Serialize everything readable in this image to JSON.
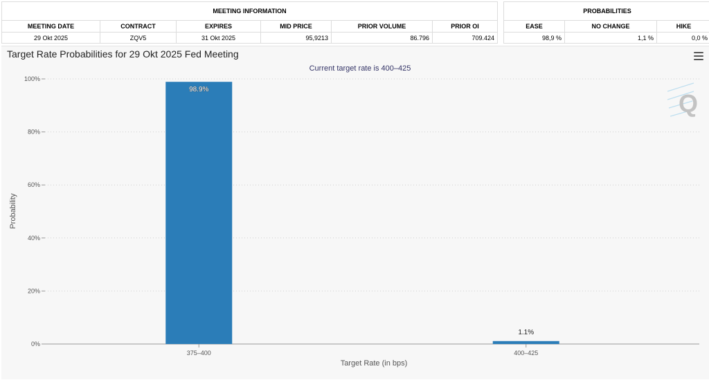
{
  "meeting_info": {
    "group_label": "MEETING INFORMATION",
    "headers": [
      "MEETING DATE",
      "CONTRACT",
      "EXPIRES",
      "MID PRICE",
      "PRIOR VOLUME",
      "PRIOR OI"
    ],
    "row": [
      "29 Okt 2025",
      "ZQV5",
      "31 Okt 2025",
      "95,9213",
      "86.796",
      "709.424"
    ]
  },
  "probabilities": {
    "group_label": "PROBABILITIES",
    "headers": [
      "EASE",
      "NO CHANGE",
      "HIKE"
    ],
    "row": [
      "98,9 %",
      "1,1 %",
      "0,0 %"
    ]
  },
  "watermark_text": "Q",
  "chart_data": {
    "type": "bar",
    "title": "Target Rate Probabilities for 29 Okt 2025 Fed Meeting",
    "subtitle": "Current target rate is 400–425",
    "xlabel": "Target Rate (in bps)",
    "ylabel": "Probability",
    "categories": [
      "375–400",
      "400–425"
    ],
    "values": [
      98.9,
      1.1
    ],
    "data_labels": [
      "98.9%",
      "1.1%"
    ],
    "ylim": [
      0,
      100
    ],
    "yticks": [
      0,
      20,
      40,
      60,
      80,
      100
    ],
    "ytick_labels": [
      "0%",
      "20%",
      "40%",
      "60%",
      "80%",
      "100%"
    ],
    "grid": true,
    "bar_color": "#2b7db8"
  }
}
